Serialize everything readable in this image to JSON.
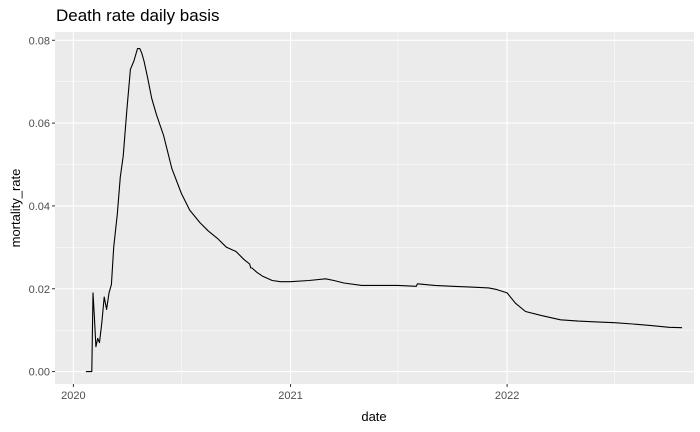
{
  "chart_data": {
    "type": "line",
    "title": "Death rate daily basis",
    "xlabel": "date",
    "ylabel": "mortality_rate",
    "x_ticks": [
      "2020",
      "2021",
      "2022"
    ],
    "y_ticks": [
      "0.00",
      "0.02",
      "0.04",
      "0.06",
      "0.08"
    ],
    "xlim": [
      "2019-12-01",
      "2022-11-12"
    ],
    "ylim": [
      -0.003,
      0.082
    ],
    "grid": true,
    "legend": "none",
    "colors": {
      "panel": "#ebebeb",
      "grid": "#ffffff",
      "line": "#000000",
      "tick_text": "#4d4d4d",
      "tick_mark": "#333333"
    },
    "series": [
      {
        "x": [
          "2020-01-22",
          "2020-02-01",
          "2020-02-03",
          "2020-02-05",
          "2020-02-08",
          "2020-02-11",
          "2020-02-14",
          "2020-02-18",
          "2020-02-22",
          "2020-02-26",
          "2020-03-01",
          "2020-03-05",
          "2020-03-09",
          "2020-03-15",
          "2020-03-20",
          "2020-03-25",
          "2020-03-31",
          "2020-04-06",
          "2020-04-12",
          "2020-04-18",
          "2020-04-22",
          "2020-04-25",
          "2020-04-29",
          "2020-05-05",
          "2020-05-12",
          "2020-05-20",
          "2020-06-01",
          "2020-06-15",
          "2020-07-01",
          "2020-07-15",
          "2020-08-01",
          "2020-08-15",
          "2020-09-01",
          "2020-09-15",
          "2020-10-01",
          "2020-10-15",
          "2020-10-24",
          "2020-10-26",
          "2020-10-28",
          "2020-11-05",
          "2020-11-15",
          "2020-12-01",
          "2020-12-15",
          "2021-01-01",
          "2021-02-01",
          "2021-03-01",
          "2021-03-15",
          "2021-04-01",
          "2021-05-01",
          "2021-06-01",
          "2021-07-01",
          "2021-08-01",
          "2021-08-03",
          "2021-09-01",
          "2021-10-01",
          "2021-11-01",
          "2021-12-01",
          "2021-12-15",
          "2022-01-01",
          "2022-01-15",
          "2022-02-01",
          "2022-03-01",
          "2022-04-01",
          "2022-05-01",
          "2022-06-01",
          "2022-07-01",
          "2022-08-01",
          "2022-09-01",
          "2022-10-01",
          "2022-10-23"
        ],
        "y": [
          0.0,
          0.0,
          0.019,
          0.014,
          0.006,
          0.008,
          0.007,
          0.012,
          0.018,
          0.015,
          0.019,
          0.021,
          0.03,
          0.038,
          0.047,
          0.052,
          0.063,
          0.073,
          0.075,
          0.078,
          0.078,
          0.077,
          0.075,
          0.071,
          0.066,
          0.062,
          0.057,
          0.049,
          0.043,
          0.039,
          0.036,
          0.034,
          0.032,
          0.03,
          0.029,
          0.027,
          0.026,
          0.025,
          0.025,
          0.024,
          0.023,
          0.022,
          0.0217,
          0.0217,
          0.022,
          0.0224,
          0.022,
          0.0214,
          0.0208,
          0.0208,
          0.0208,
          0.0206,
          0.0212,
          0.0208,
          0.0206,
          0.0204,
          0.0202,
          0.0198,
          0.019,
          0.0165,
          0.0145,
          0.0135,
          0.0125,
          0.0122,
          0.012,
          0.0118,
          0.0115,
          0.0111,
          0.0107,
          0.0106
        ]
      }
    ]
  }
}
